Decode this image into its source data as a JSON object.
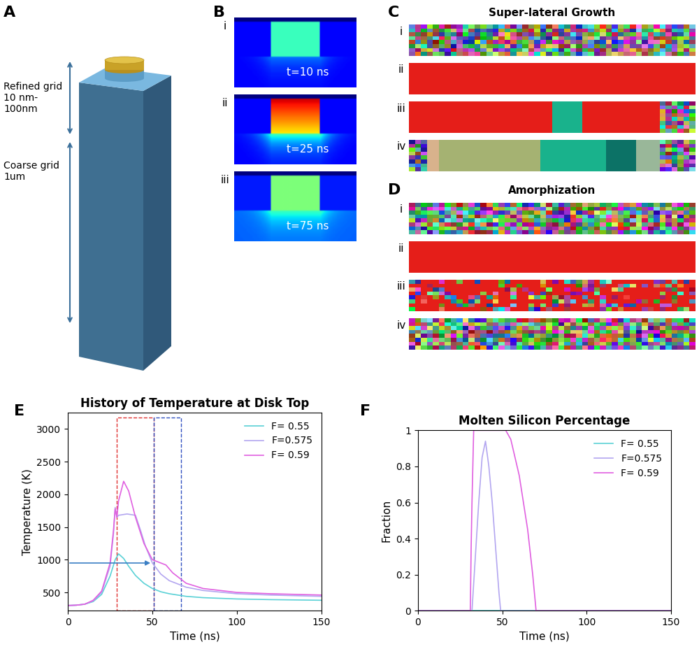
{
  "panels": {
    "A": {
      "panel_label": "A",
      "annotations": [
        {
          "lines": [
            "Refined grid",
            "10 nm-",
            "100nm"
          ]
        },
        {
          "lines": [
            "Coarse grid",
            "1um"
          ]
        }
      ]
    },
    "B": {
      "panel_label": "B",
      "images": [
        {
          "index": "i",
          "time": "t=10 ns"
        },
        {
          "index": "ii",
          "time": "t=25 ns"
        },
        {
          "index": "iii",
          "time": "t=75 ns"
        }
      ]
    },
    "C": {
      "panel_label": "C",
      "title": "Super-lateral Growth",
      "rows": [
        "i",
        "ii",
        "iii",
        "iv"
      ]
    },
    "D": {
      "panel_label": "D",
      "title": "Amorphization",
      "rows": [
        "i",
        "ii",
        "iii",
        "iv"
      ]
    }
  },
  "chart_data": [
    {
      "type": "line",
      "panel_label": "E",
      "title": "History of Temperature at Disk Top",
      "x_label": "Time (ns)",
      "y_label": "Temperature (K)",
      "xlim": [
        0,
        150
      ],
      "xticks": [
        0,
        50,
        100,
        150
      ],
      "ylim": [
        220,
        3250
      ],
      "yticks": [
        500,
        1000,
        1500,
        2000,
        2500,
        3000
      ],
      "grid": false,
      "legend": "upper right",
      "series": [
        {
          "name": "F= 0.55",
          "color": "#5ad1d6",
          "x": [
            0,
            5,
            10,
            15,
            20,
            25,
            28,
            30,
            33,
            36,
            40,
            45,
            50,
            55,
            60,
            70,
            80,
            100,
            120,
            150
          ],
          "values": [
            300,
            305,
            320,
            360,
            470,
            750,
            1000,
            1090,
            1020,
            900,
            760,
            640,
            560,
            510,
            480,
            440,
            420,
            400,
            390,
            380
          ]
        },
        {
          "name": "F=0.575",
          "color": "#b3a6f0",
          "x": [
            0,
            5,
            10,
            15,
            20,
            25,
            27,
            28,
            29,
            30,
            35,
            40,
            43,
            46,
            50,
            55,
            60,
            70,
            80,
            100,
            120,
            150
          ],
          "values": [
            300,
            305,
            320,
            370,
            500,
            900,
            1400,
            1800,
            1650,
            1680,
            1700,
            1680,
            1450,
            1200,
            950,
            780,
            680,
            580,
            530,
            480,
            460,
            440
          ]
        },
        {
          "name": "F= 0.59",
          "color": "#e060e0",
          "x": [
            0,
            5,
            10,
            15,
            20,
            25,
            27,
            28,
            29,
            30,
            33,
            36,
            40,
            45,
            50,
            55,
            58,
            62,
            70,
            80,
            100,
            120,
            150
          ],
          "values": [
            300,
            305,
            320,
            380,
            520,
            950,
            1450,
            1780,
            1650,
            1900,
            2200,
            2050,
            1650,
            1250,
            1000,
            950,
            920,
            800,
            640,
            560,
            500,
            480,
            460
          ]
        }
      ],
      "highlight_boxes": [
        {
          "x": [
            29,
            51
          ],
          "y": [
            220,
            3180
          ],
          "color": "#e03030"
        },
        {
          "x": [
            51,
            67
          ],
          "y": [
            220,
            3180
          ],
          "color": "#3050c0"
        }
      ],
      "arrow": {
        "x": [
          0,
          50
        ],
        "y": 950,
        "color": "#3b7fc4"
      }
    },
    {
      "type": "line",
      "panel_label": "F",
      "title": "Molten Silicon Percentage",
      "x_label": "Time (ns)",
      "y_label": "Fraction",
      "xlim": [
        0,
        150
      ],
      "xticks": [
        0,
        50,
        100,
        150
      ],
      "ylim": [
        0,
        1
      ],
      "yticks": [
        0,
        0.2,
        0.4,
        0.6,
        0.8,
        1
      ],
      "grid": false,
      "legend": "upper right",
      "series": [
        {
          "name": "F= 0.55",
          "color": "#5ad1d6",
          "x": [
            0,
            30,
            60,
            150
          ],
          "values": [
            0,
            0,
            0,
            0
          ]
        },
        {
          "name": "F=0.575",
          "color": "#b3a6f0",
          "x": [
            0,
            32,
            34,
            36,
            38,
            40,
            42,
            44,
            46,
            48,
            49,
            150
          ],
          "values": [
            0,
            0,
            0.3,
            0.6,
            0.85,
            0.94,
            0.8,
            0.6,
            0.35,
            0.1,
            0,
            0
          ]
        },
        {
          "name": "F= 0.59",
          "color": "#e060e0",
          "x": [
            0,
            31,
            31.5,
            32,
            33,
            52,
            55,
            60,
            65,
            68,
            70,
            150
          ],
          "values": [
            0,
            0,
            0.35,
            0.6,
            1,
            1,
            0.95,
            0.75,
            0.45,
            0.2,
            0,
            0
          ]
        }
      ]
    }
  ]
}
